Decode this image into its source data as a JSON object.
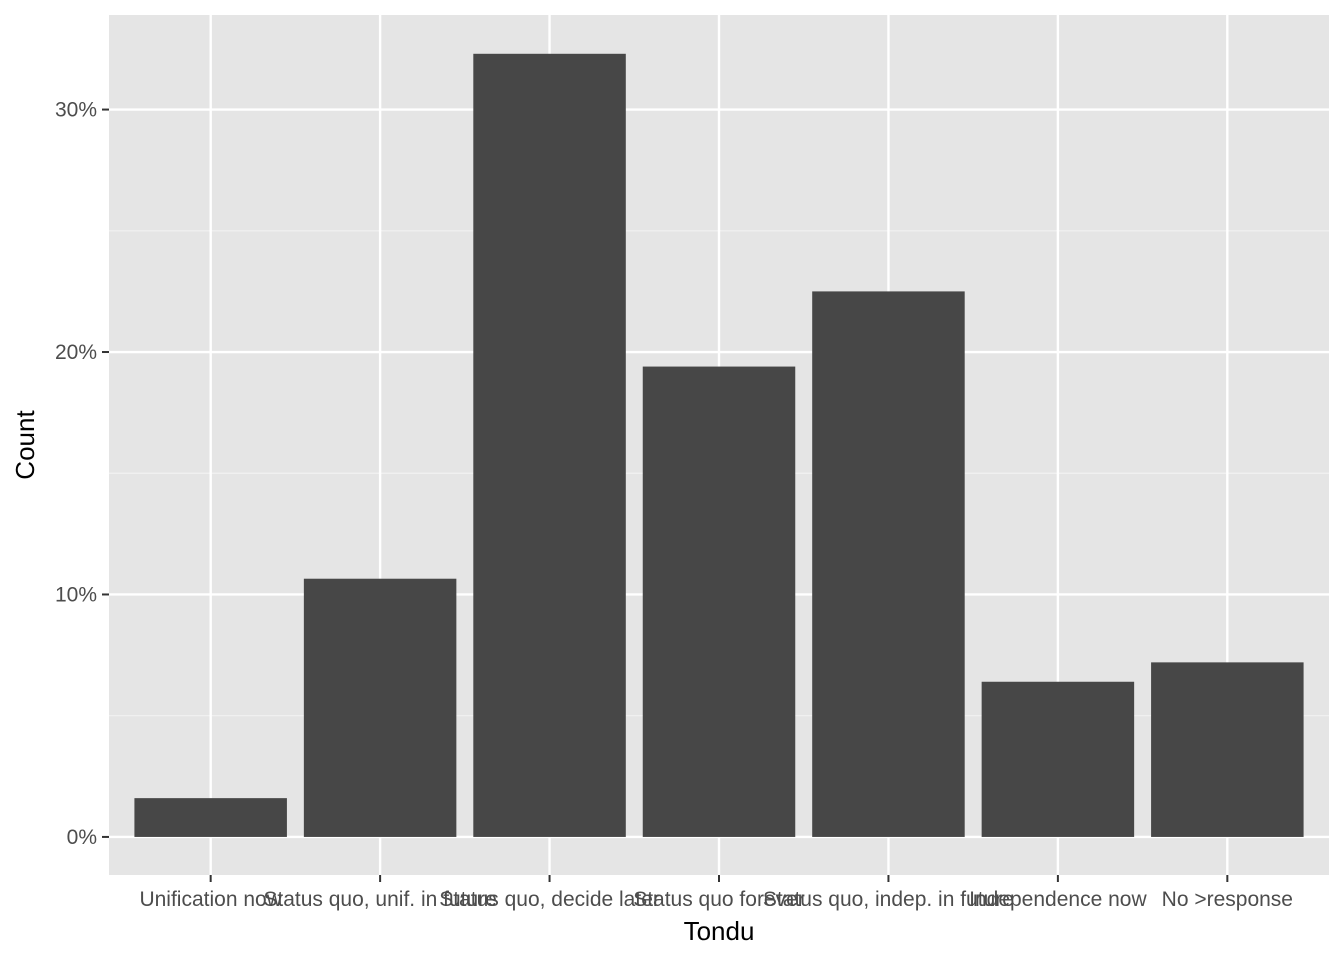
{
  "chart_data": {
    "type": "bar",
    "x_label": "Tondu",
    "y_label": "Count",
    "categories": [
      "Unification now",
      "Status quo, unif. in future",
      "Status quo, decide later",
      "Status quo forever",
      "Status quo, indep. in future",
      "Independence now",
      "No >response"
    ],
    "values": [
      1.6,
      10.65,
      32.3,
      19.4,
      22.5,
      6.4,
      7.2
    ],
    "color": "#474747",
    "ylim": [
      -1.57,
      33.9
    ],
    "yticks": [
      {
        "value": 0,
        "label": "0%"
      },
      {
        "value": 10,
        "label": "10%"
      },
      {
        "value": 20,
        "label": "20%"
      },
      {
        "value": 30,
        "label": "30%"
      }
    ],
    "yminor": [
      5,
      15,
      25
    ],
    "grid": true
  }
}
